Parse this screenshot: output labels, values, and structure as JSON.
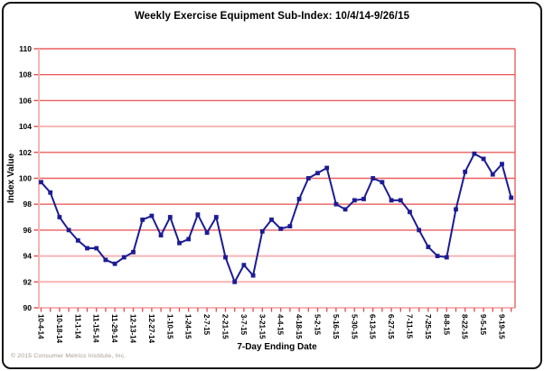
{
  "footer": {
    "copyright": "© 2015 Consumer Metrics Institute, Inc."
  },
  "colors": {
    "line": "#1c1c94",
    "marker": "#1c1c94",
    "grid": "#ec5f5f",
    "grid_light": "#f7b4b4",
    "tick": "#d94f4f",
    "text": "#000000",
    "copyright_text": "#a09a91"
  },
  "chart_data": {
    "type": "line",
    "title": "Weekly Exercise Equipment Sub-Index: 10/4/14-9/26/15",
    "xlabel": "7-Day Ending Date",
    "ylabel": "Index Value",
    "ylim": [
      90,
      110
    ],
    "y_ticks": [
      90,
      92,
      94,
      96,
      98,
      100,
      102,
      104,
      106,
      108,
      110
    ],
    "light_gridlines": [
      90,
      92,
      94,
      104
    ],
    "grid": "horizontal-only",
    "legend": "none",
    "x_label_every": 2,
    "x": [
      "10-4-14",
      "10-11-14",
      "10-18-14",
      "10-25-14",
      "11-1-14",
      "11-8-14",
      "11-15-14",
      "11-22-14",
      "11-29-14",
      "12-6-14",
      "12-13-14",
      "12-20-14",
      "12-27-14",
      "1-3-15",
      "1-10-15",
      "1-17-15",
      "1-24-15",
      "1-31-15",
      "2-7-15",
      "2-14-15",
      "2-21-15",
      "2-28-15",
      "3-7-15",
      "3-14-15",
      "3-21-15",
      "3-28-15",
      "4-4-15",
      "4-11-15",
      "4-18-15",
      "4-25-15",
      "5-2-15",
      "5-9-15",
      "5-16-15",
      "5-23-15",
      "5-30-15",
      "6-6-15",
      "6-13-15",
      "6-20-15",
      "6-27-15",
      "7-4-15",
      "7-11-15",
      "7-18-15",
      "7-25-15",
      "8-1-15",
      "8-8-15",
      "8-15-15",
      "8-22-15",
      "8-29-15",
      "9-5-15",
      "9-12-15",
      "9-19-15",
      "9-26-15"
    ],
    "x_tick_labels": [
      "10-4-14",
      "10-18-14",
      "11-1-14",
      "11-15-14",
      "11-29-14",
      "12-13-14",
      "12-27-14",
      "1-10-15",
      "1-24-15",
      "2-7-15",
      "2-21-15",
      "3-7-15",
      "3-21-15",
      "4-4-15",
      "4-18-15",
      "5-2-15",
      "5-16-15",
      "5-30-15",
      "6-13-15",
      "6-27-15",
      "7-11-15",
      "7-25-15",
      "8-8-15",
      "8-22-15",
      "9-5-15",
      "9-19-15"
    ],
    "series": [
      {
        "name": "Weekly Exercise Equipment Sub-Index",
        "values": [
          99.7,
          98.9,
          97.0,
          96.0,
          95.2,
          94.6,
          94.6,
          93.7,
          93.4,
          93.9,
          94.3,
          96.8,
          97.1,
          95.6,
          97.0,
          95.0,
          95.3,
          97.2,
          95.8,
          97.0,
          93.9,
          92.0,
          93.3,
          92.5,
          95.9,
          96.8,
          96.1,
          96.3,
          98.4,
          100.0,
          100.4,
          100.8,
          98.0,
          97.6,
          98.3,
          98.4,
          100.0,
          99.7,
          98.3,
          98.3,
          97.4,
          96.0,
          94.7,
          94.0,
          93.9,
          97.6,
          100.5,
          101.9,
          101.5,
          100.3,
          101.1,
          98.5
        ]
      }
    ]
  }
}
